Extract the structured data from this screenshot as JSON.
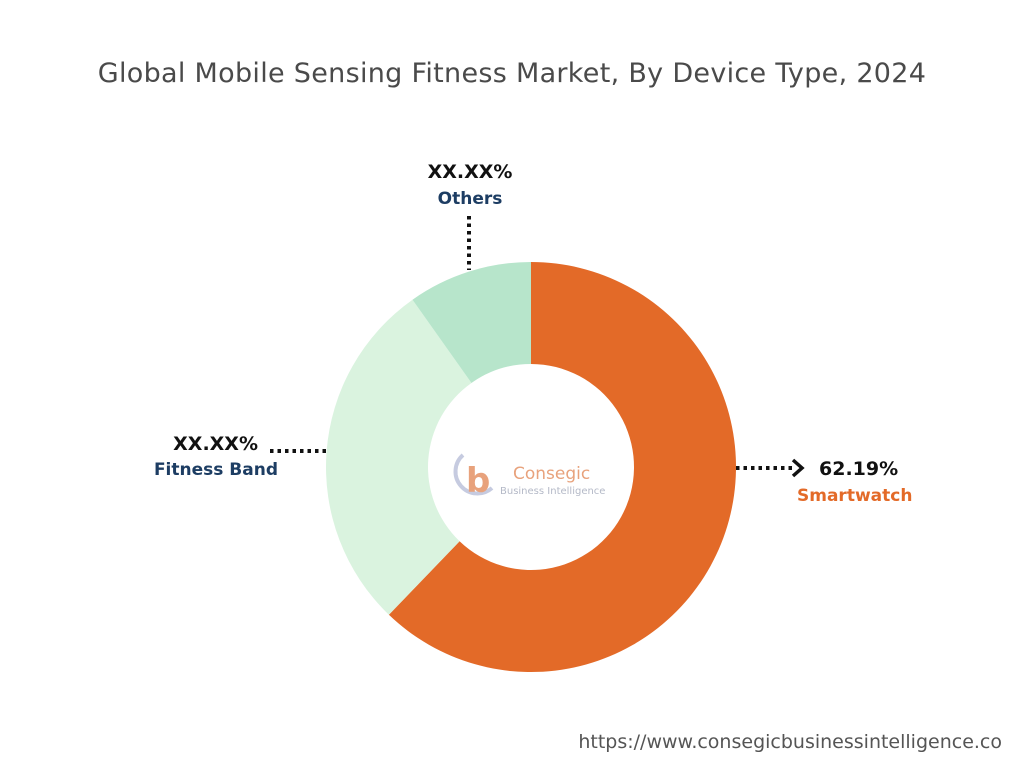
{
  "chart_data": {
    "type": "pie",
    "title": "Global Mobile Sensing Fitness Market, By Device Type, 2024",
    "slices": [
      {
        "name": "Smartwatch",
        "value": 62.19,
        "label": "62.19%",
        "color": "#e36a28"
      },
      {
        "name": "Fitness Band",
        "value": 28.0,
        "label": "XX.XX%",
        "color": "#daf3df"
      },
      {
        "name": "Others",
        "value": 9.81,
        "label": "XX.XX%",
        "color": "#b7e5cb"
      }
    ],
    "label_name_colors": {
      "Smartwatch": "#e36a28",
      "Fitness Band": "#1d3d63",
      "Others": "#1d3d63"
    }
  },
  "logo": {
    "mark": "b",
    "name": "Consegic",
    "tagline": "Business Intelligence"
  },
  "footer": {
    "url": "https://www.consegicbusinessintelligence.co"
  }
}
